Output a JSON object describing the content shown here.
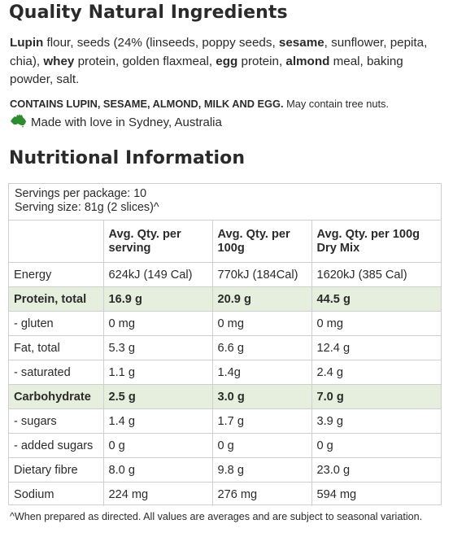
{
  "ingredients": {
    "heading": "Quality Natural Ingredients",
    "list_parts": [
      {
        "text": "Lupin",
        "bold": true
      },
      {
        "text": " flour, seeds (24% (linseeds, poppy seeds, ",
        "bold": false
      },
      {
        "text": "sesame",
        "bold": true
      },
      {
        "text": ", sunflower, pepita, chia), ",
        "bold": false
      },
      {
        "text": "whey",
        "bold": true
      },
      {
        "text": " protein, golden flaxmeal, ",
        "bold": false
      },
      {
        "text": "egg",
        "bold": true
      },
      {
        "text": " protein, ",
        "bold": false
      },
      {
        "text": "almond",
        "bold": true
      },
      {
        "text": " meal, baking powder, salt.",
        "bold": false
      }
    ],
    "allergen_bold": "CONTAINS LUPIN, SESAME, ALMOND, MILK AND EGG.",
    "allergen_note": " May contain tree nuts.",
    "made_in": "Made with love in Sydney, Australia",
    "made_in_icon": "australia-map-icon",
    "made_in_icon_color": "#2e8b2e"
  },
  "nutrition": {
    "heading": "Nutritional Information",
    "servings_per_package": "Servings per package: 10",
    "serving_size": "Serving size: 81g (2 slices)^",
    "columns": [
      "",
      "Avg. Qty. per serving",
      "Avg. Qty. per 100g",
      "Avg. Qty. per 100g Dry Mix"
    ],
    "highlight_color": "#e6efdd",
    "rows": [
      {
        "label": "Energy",
        "values": [
          "624kJ (149 Cal)",
          "770kJ (184Cal)",
          "1620kJ (385 Cal)"
        ],
        "highlight": false
      },
      {
        "label": "Protein, total",
        "values": [
          "16.9 g",
          "20.9 g",
          "44.5 g"
        ],
        "highlight": true
      },
      {
        "label": "- gluten",
        "values": [
          "0 mg",
          "0 mg",
          "0 mg"
        ],
        "highlight": false
      },
      {
        "label": "Fat, total",
        "values": [
          "5.3 g",
          "6.6 g",
          "12.4 g"
        ],
        "highlight": false
      },
      {
        "label": "- saturated",
        "values": [
          "1.1 g",
          "1.4g",
          "2.4 g"
        ],
        "highlight": false
      },
      {
        "label": "Carbohydrate",
        "values": [
          "2.5 g",
          "3.0 g",
          "7.0 g"
        ],
        "highlight": true
      },
      {
        "label": "- sugars",
        "values": [
          "1.4 g",
          "1.7 g",
          "3.9 g"
        ],
        "highlight": false
      },
      {
        "label": "- added sugars",
        "values": [
          "0 g",
          "0 g",
          "0 g"
        ],
        "highlight": false
      },
      {
        "label": "Dietary fibre",
        "values": [
          "8.0 g",
          "9.8 g",
          "23.0 g"
        ],
        "highlight": false
      },
      {
        "label": "Sodium",
        "values": [
          "224 mg",
          "276 mg",
          "594 mg"
        ],
        "highlight": false
      }
    ],
    "footnote": "^When prepared as directed. All values are averages and are subject to seasonal variation."
  }
}
